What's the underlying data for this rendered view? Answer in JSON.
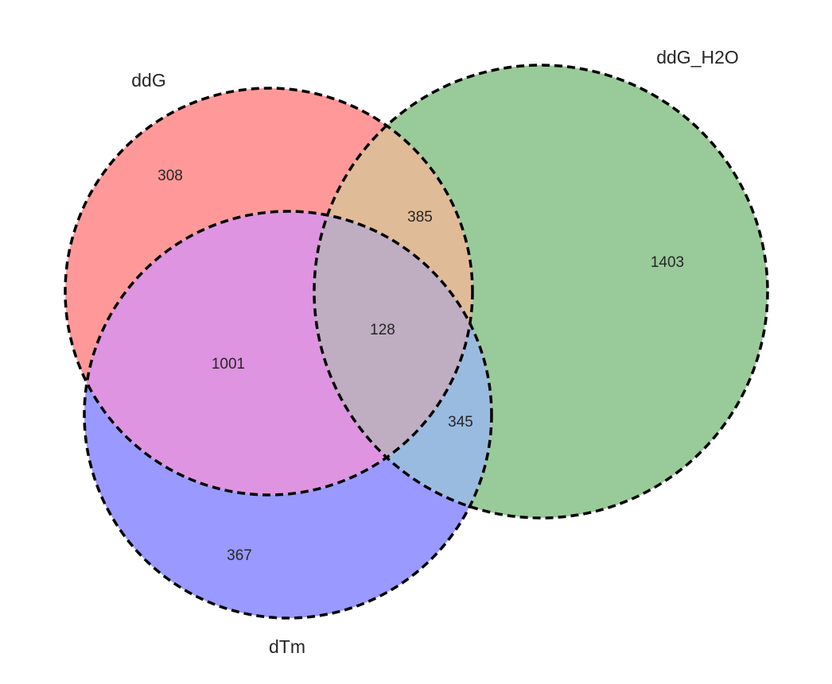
{
  "chart_data": {
    "type": "venn3",
    "sets": [
      {
        "id": "A",
        "name": "ddG",
        "color": "#ff9999"
      },
      {
        "id": "B",
        "name": "ddG_H2O",
        "color": "#99ca99"
      },
      {
        "id": "C",
        "name": "dTm",
        "color": "#9999ff"
      }
    ],
    "regions": {
      "A_only": {
        "value": "308",
        "color": "#ff9999"
      },
      "B_only": {
        "value": "1403",
        "color": "#99ca99"
      },
      "C_only": {
        "value": "367",
        "color": "#9999ff"
      },
      "AB": {
        "value": "385",
        "color": "#e0bb97"
      },
      "AC": {
        "value": "1001",
        "color": "#de94e0"
      },
      "BC": {
        "value": "345",
        "color": "#99bbe0"
      },
      "ABC": {
        "value": "128",
        "color": "#bfadc2"
      }
    },
    "outline_style": "dashed"
  }
}
